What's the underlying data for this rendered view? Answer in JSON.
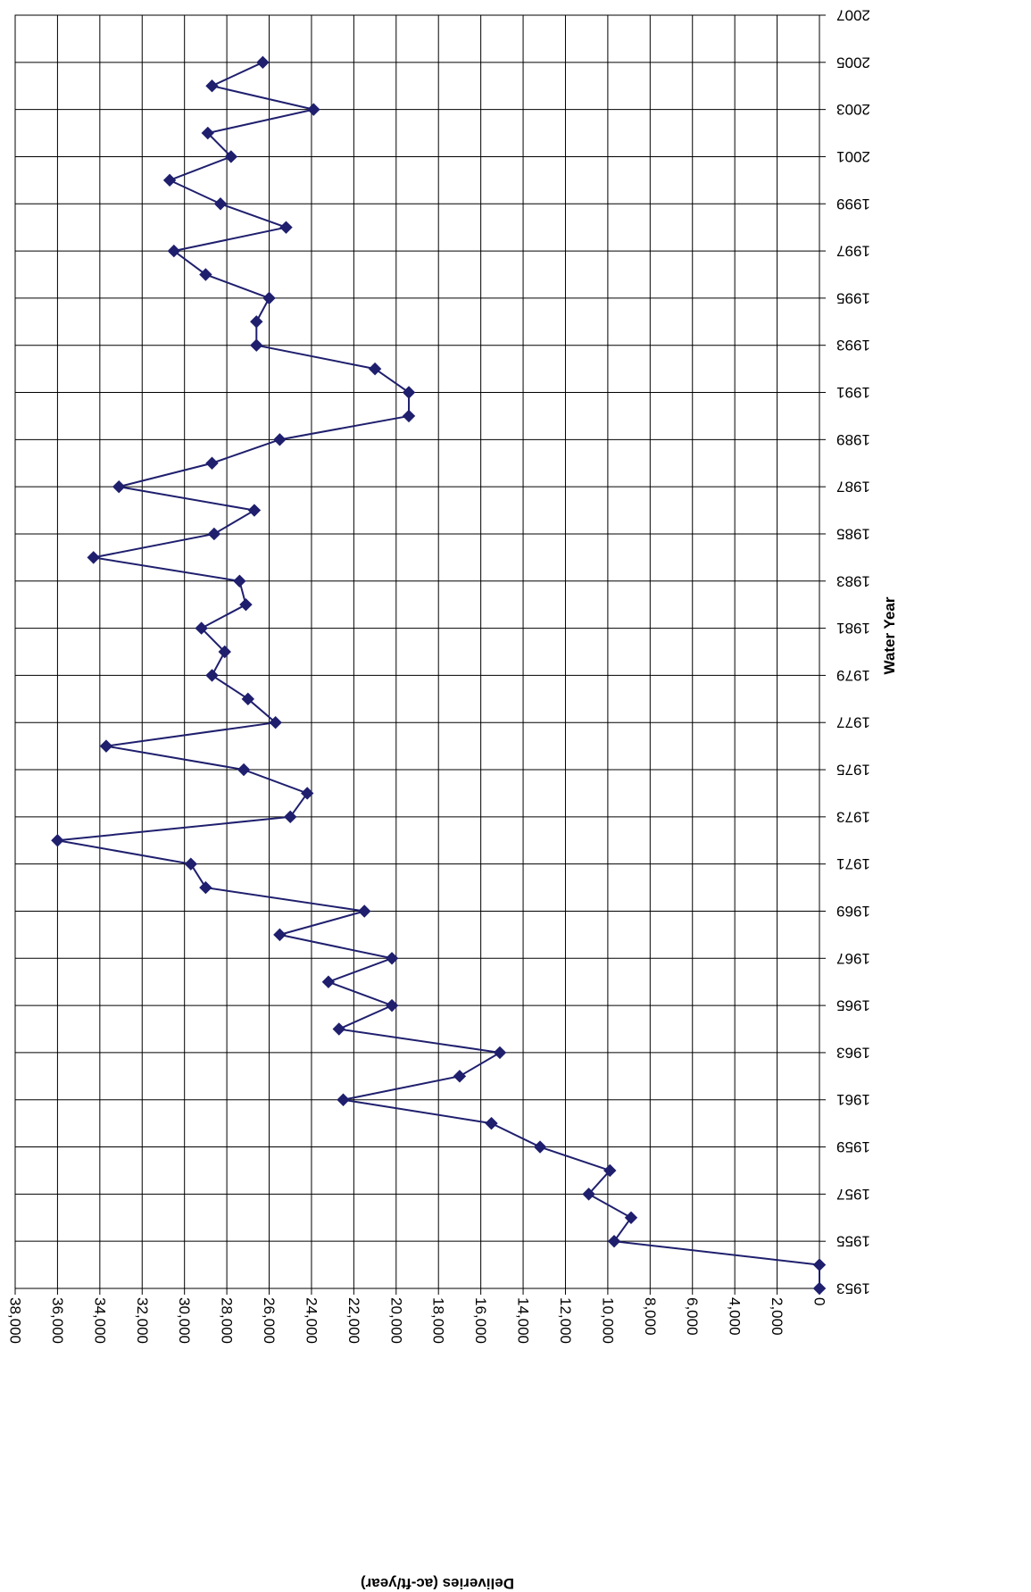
{
  "chart_data": {
    "type": "line",
    "title": "",
    "xlabel": "Water Year",
    "ylabel": "Deliveries (ac-ft/year)",
    "rotation": "chart displayed rotated 90 degrees clockwise: Water Year runs top-to-bottom along the right side, Deliveries runs right-to-left along the bottom",
    "xlim": [
      1953,
      2007
    ],
    "ylim": [
      0,
      38000
    ],
    "x_ticks": [
      "1953",
      "1955",
      "1957",
      "1959",
      "1961",
      "1963",
      "1965",
      "1967",
      "1969",
      "1971",
      "1973",
      "1975",
      "1977",
      "1979",
      "1981",
      "1983",
      "1985",
      "1987",
      "1989",
      "1991",
      "1993",
      "1995",
      "1997",
      "1999",
      "2001",
      "2003",
      "2005",
      "2007"
    ],
    "y_ticks": [
      "0",
      "2,000",
      "4,000",
      "6,000",
      "8,000",
      "10,000",
      "12,000",
      "14,000",
      "16,000",
      "18,000",
      "20,000",
      "22,000",
      "24,000",
      "26,000",
      "28,000",
      "30,000",
      "32,000",
      "34,000",
      "36,000",
      "38,000"
    ],
    "grid": true,
    "line_color": "#1f1f6e",
    "series": [
      {
        "x": [
          1953,
          1954,
          1955,
          1956,
          1957,
          1958,
          1959,
          1960,
          1961,
          1962,
          1963,
          1964,
          1965,
          1966,
          1967,
          1968,
          1969,
          1970,
          1971,
          1972,
          1973,
          1974,
          1975,
          1976,
          1977,
          1978,
          1979,
          1980,
          1981,
          1982,
          1983,
          1984,
          1985,
          1986,
          1987,
          1988,
          1989,
          1990,
          1991,
          1992,
          1993,
          1994,
          1995,
          1996,
          1997,
          1998,
          1999,
          2000,
          2001,
          2002,
          2003,
          2004,
          2005,
          2006
        ],
        "values": [
          0,
          0,
          9700,
          8900,
          10900,
          9900,
          13200,
          15500,
          22500,
          17000,
          15100,
          22700,
          20200,
          23200,
          20200,
          25500,
          21500,
          29000,
          29700,
          36000,
          25000,
          24200,
          27200,
          33700,
          25700,
          27000,
          28700,
          28100,
          29200,
          27100,
          27400,
          34300,
          28600,
          26700,
          33100,
          28700,
          25500,
          19400,
          19400,
          21000,
          26600,
          26600,
          26000,
          29000,
          30500,
          25200,
          28300,
          30700,
          27800,
          28900,
          23900,
          28700,
          26300,
          null
        ]
      }
    ]
  }
}
